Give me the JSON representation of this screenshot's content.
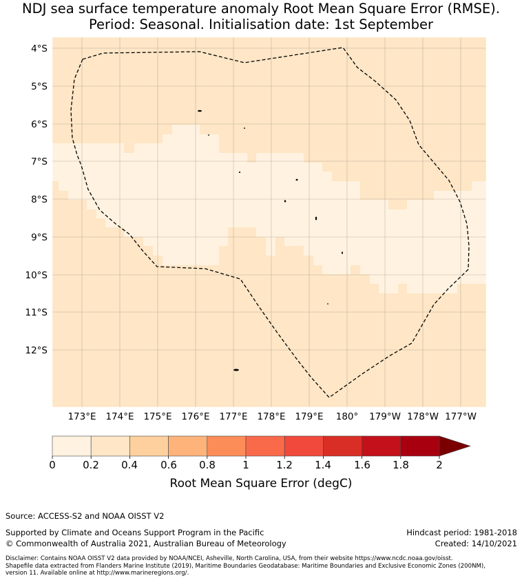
{
  "title": {
    "line1": "NDJ sea surface temperature anomaly Root Mean Square Error (RMSE).",
    "line2": "Period: Seasonal. Initialisation date: 1st September"
  },
  "map": {
    "lat_labels": [
      "4°S",
      "5°S",
      "6°S",
      "7°S",
      "8°S",
      "9°S",
      "10°S",
      "11°S",
      "12°S"
    ],
    "lon_labels": [
      "173°E",
      "174°E",
      "175°E",
      "176°E",
      "177°E",
      "178°E",
      "179°E",
      "180°",
      "179°W",
      "178°W",
      "177°W"
    ],
    "colors": {
      "class_0_02": "#fff2e0",
      "class_02_04": "#fee6c6",
      "border": "#000000"
    }
  },
  "colorbar": {
    "title": "Root Mean Square Error (degC)",
    "tick_labels": [
      "0",
      "0.2",
      "0.4",
      "0.6",
      "0.8",
      "1",
      "1.2",
      "1.4",
      "1.6",
      "1.8",
      "2"
    ],
    "colors": [
      "#fff2e0",
      "#fee6c6",
      "#fdd09e",
      "#fdb37a",
      "#fc8d59",
      "#f96a4b",
      "#f1493b",
      "#d92e25",
      "#c3101b",
      "#a90010",
      "#7a0000"
    ]
  },
  "footer": {
    "source": "Source: ACCESS-S2 and NOAA OISST V2",
    "supported": "Supported by Climate and Oceans Support Program in the Pacific",
    "copyright": "© Commonwealth of Australia 2021, Australian Bureau of Meteorology",
    "hindcast": "Hindcast period: 1981-2018",
    "created": "Created: 14/10/2021",
    "disclaimer1": "Disclaimer: Contains NOAA OISST V2 data provided by NOAA/NCEI, Asheville, North Carolina, USA, from their website https://www.ncdc.noaa.gov/oisst.",
    "disclaimer2": "Shapefile data extracted from Flanders Marine Institute (2019), Maritime Boundaries Geodatabase: Maritime Boundaries and Exclusive Economic Zones (200NM),",
    "disclaimer3": "version 11. Available online at http://www.marineregions.org/."
  }
}
